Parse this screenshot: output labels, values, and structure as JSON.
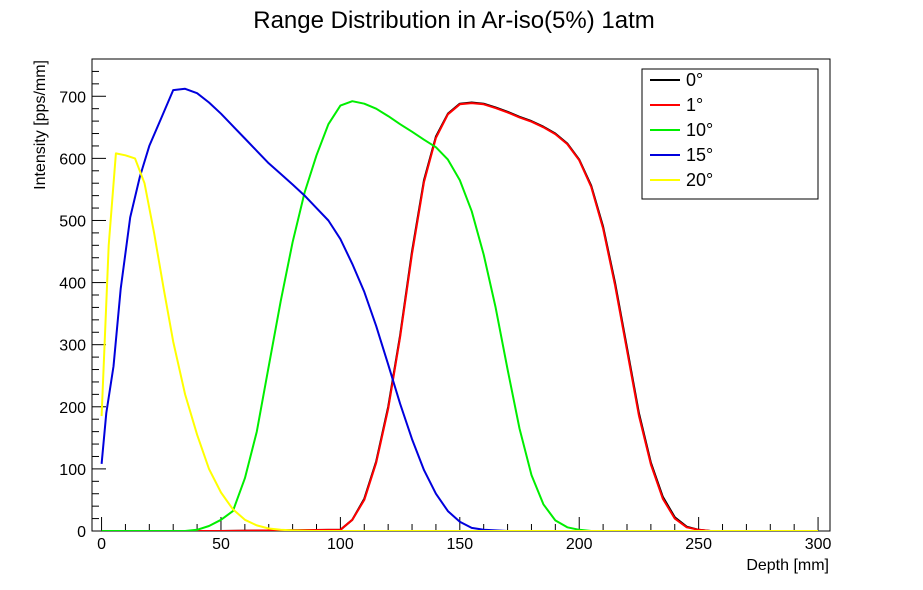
{
  "chart_data": {
    "type": "line",
    "title": "Range Distribution in Ar-iso(5%) 1atm",
    "xlabel": "Depth [mm]",
    "ylabel": "Intensity [pps/mm]",
    "xlim": [
      -4,
      305
    ],
    "ylim": [
      0,
      760
    ],
    "x_ticks": [
      0,
      50,
      100,
      150,
      200,
      250,
      300
    ],
    "y_ticks": [
      0,
      100,
      200,
      300,
      400,
      500,
      600,
      700
    ],
    "grid": false,
    "legend_position": "top-right",
    "series": [
      {
        "name": "0°",
        "color": "#000000",
        "x": [
          0,
          50,
          100,
          105,
          110,
          115,
          120,
          125,
          130,
          135,
          140,
          145,
          150,
          155,
          160,
          165,
          170,
          175,
          180,
          185,
          190,
          195,
          200,
          205,
          210,
          215,
          220,
          225,
          230,
          235,
          240,
          245,
          250,
          255,
          260,
          265,
          270,
          275,
          280
        ],
        "y": [
          0,
          0,
          2,
          18,
          52,
          112,
          200,
          315,
          450,
          565,
          635,
          672,
          688,
          690,
          688,
          682,
          675,
          667,
          660,
          651,
          640,
          624,
          598,
          556,
          490,
          400,
          295,
          190,
          110,
          55,
          22,
          7,
          2,
          0,
          0,
          0,
          0,
          0,
          0
        ]
      },
      {
        "name": "1°",
        "color": "#ff0000",
        "x": [
          0,
          50,
          100,
          105,
          110,
          115,
          120,
          125,
          130,
          135,
          140,
          145,
          150,
          155,
          160,
          165,
          170,
          175,
          180,
          185,
          190,
          195,
          200,
          205,
          210,
          215,
          220,
          225,
          230,
          235,
          240,
          245,
          250,
          255,
          260,
          265,
          270,
          275,
          280
        ],
        "y": [
          0,
          0,
          2,
          18,
          50,
          110,
          197,
          312,
          446,
          562,
          633,
          671,
          687,
          689,
          687,
          681,
          674,
          666,
          659,
          650,
          639,
          623,
          597,
          554,
          487,
          396,
          291,
          186,
          107,
          52,
          20,
          6,
          2,
          0,
          0,
          0,
          0,
          0,
          0
        ]
      },
      {
        "name": "10°",
        "color": "#00ee00",
        "x": [
          0,
          35,
          40,
          45,
          50,
          55,
          60,
          65,
          70,
          75,
          80,
          85,
          90,
          95,
          100,
          105,
          110,
          115,
          120,
          125,
          130,
          135,
          140,
          145,
          150,
          155,
          160,
          165,
          170,
          175,
          180,
          185,
          190,
          195,
          200,
          205,
          210,
          215,
          220,
          225,
          230,
          300
        ],
        "y": [
          0,
          0,
          2,
          8,
          18,
          32,
          85,
          160,
          265,
          370,
          465,
          545,
          605,
          655,
          685,
          692,
          688,
          680,
          668,
          655,
          643,
          630,
          618,
          598,
          565,
          515,
          445,
          360,
          260,
          165,
          90,
          43,
          17,
          6,
          2,
          0,
          0,
          0,
          0,
          0,
          0,
          0
        ]
      },
      {
        "name": "15°",
        "color": "#0000dd",
        "x": [
          0,
          2,
          5,
          8,
          12,
          16,
          20,
          25,
          30,
          35,
          40,
          45,
          50,
          55,
          60,
          65,
          70,
          75,
          80,
          85,
          90,
          95,
          100,
          105,
          110,
          115,
          120,
          125,
          130,
          135,
          140,
          145,
          150,
          155,
          160,
          170,
          300
        ],
        "y": [
          108,
          190,
          265,
          390,
          505,
          570,
          620,
          665,
          710,
          712,
          705,
          690,
          672,
          652,
          632,
          612,
          592,
          575,
          558,
          540,
          520,
          500,
          470,
          430,
          385,
          330,
          268,
          205,
          148,
          98,
          60,
          32,
          15,
          5,
          2,
          0,
          0
        ]
      },
      {
        "name": "20°",
        "color": "#ffff00",
        "x": [
          0,
          3,
          6,
          10,
          14,
          18,
          22,
          26,
          30,
          35,
          40,
          45,
          50,
          55,
          60,
          65,
          70,
          75,
          80,
          90,
          100,
          300
        ],
        "y": [
          185,
          460,
          608,
          605,
          600,
          560,
          480,
          390,
          305,
          220,
          155,
          100,
          62,
          35,
          18,
          9,
          4,
          2,
          1,
          0,
          0,
          0
        ]
      }
    ]
  }
}
